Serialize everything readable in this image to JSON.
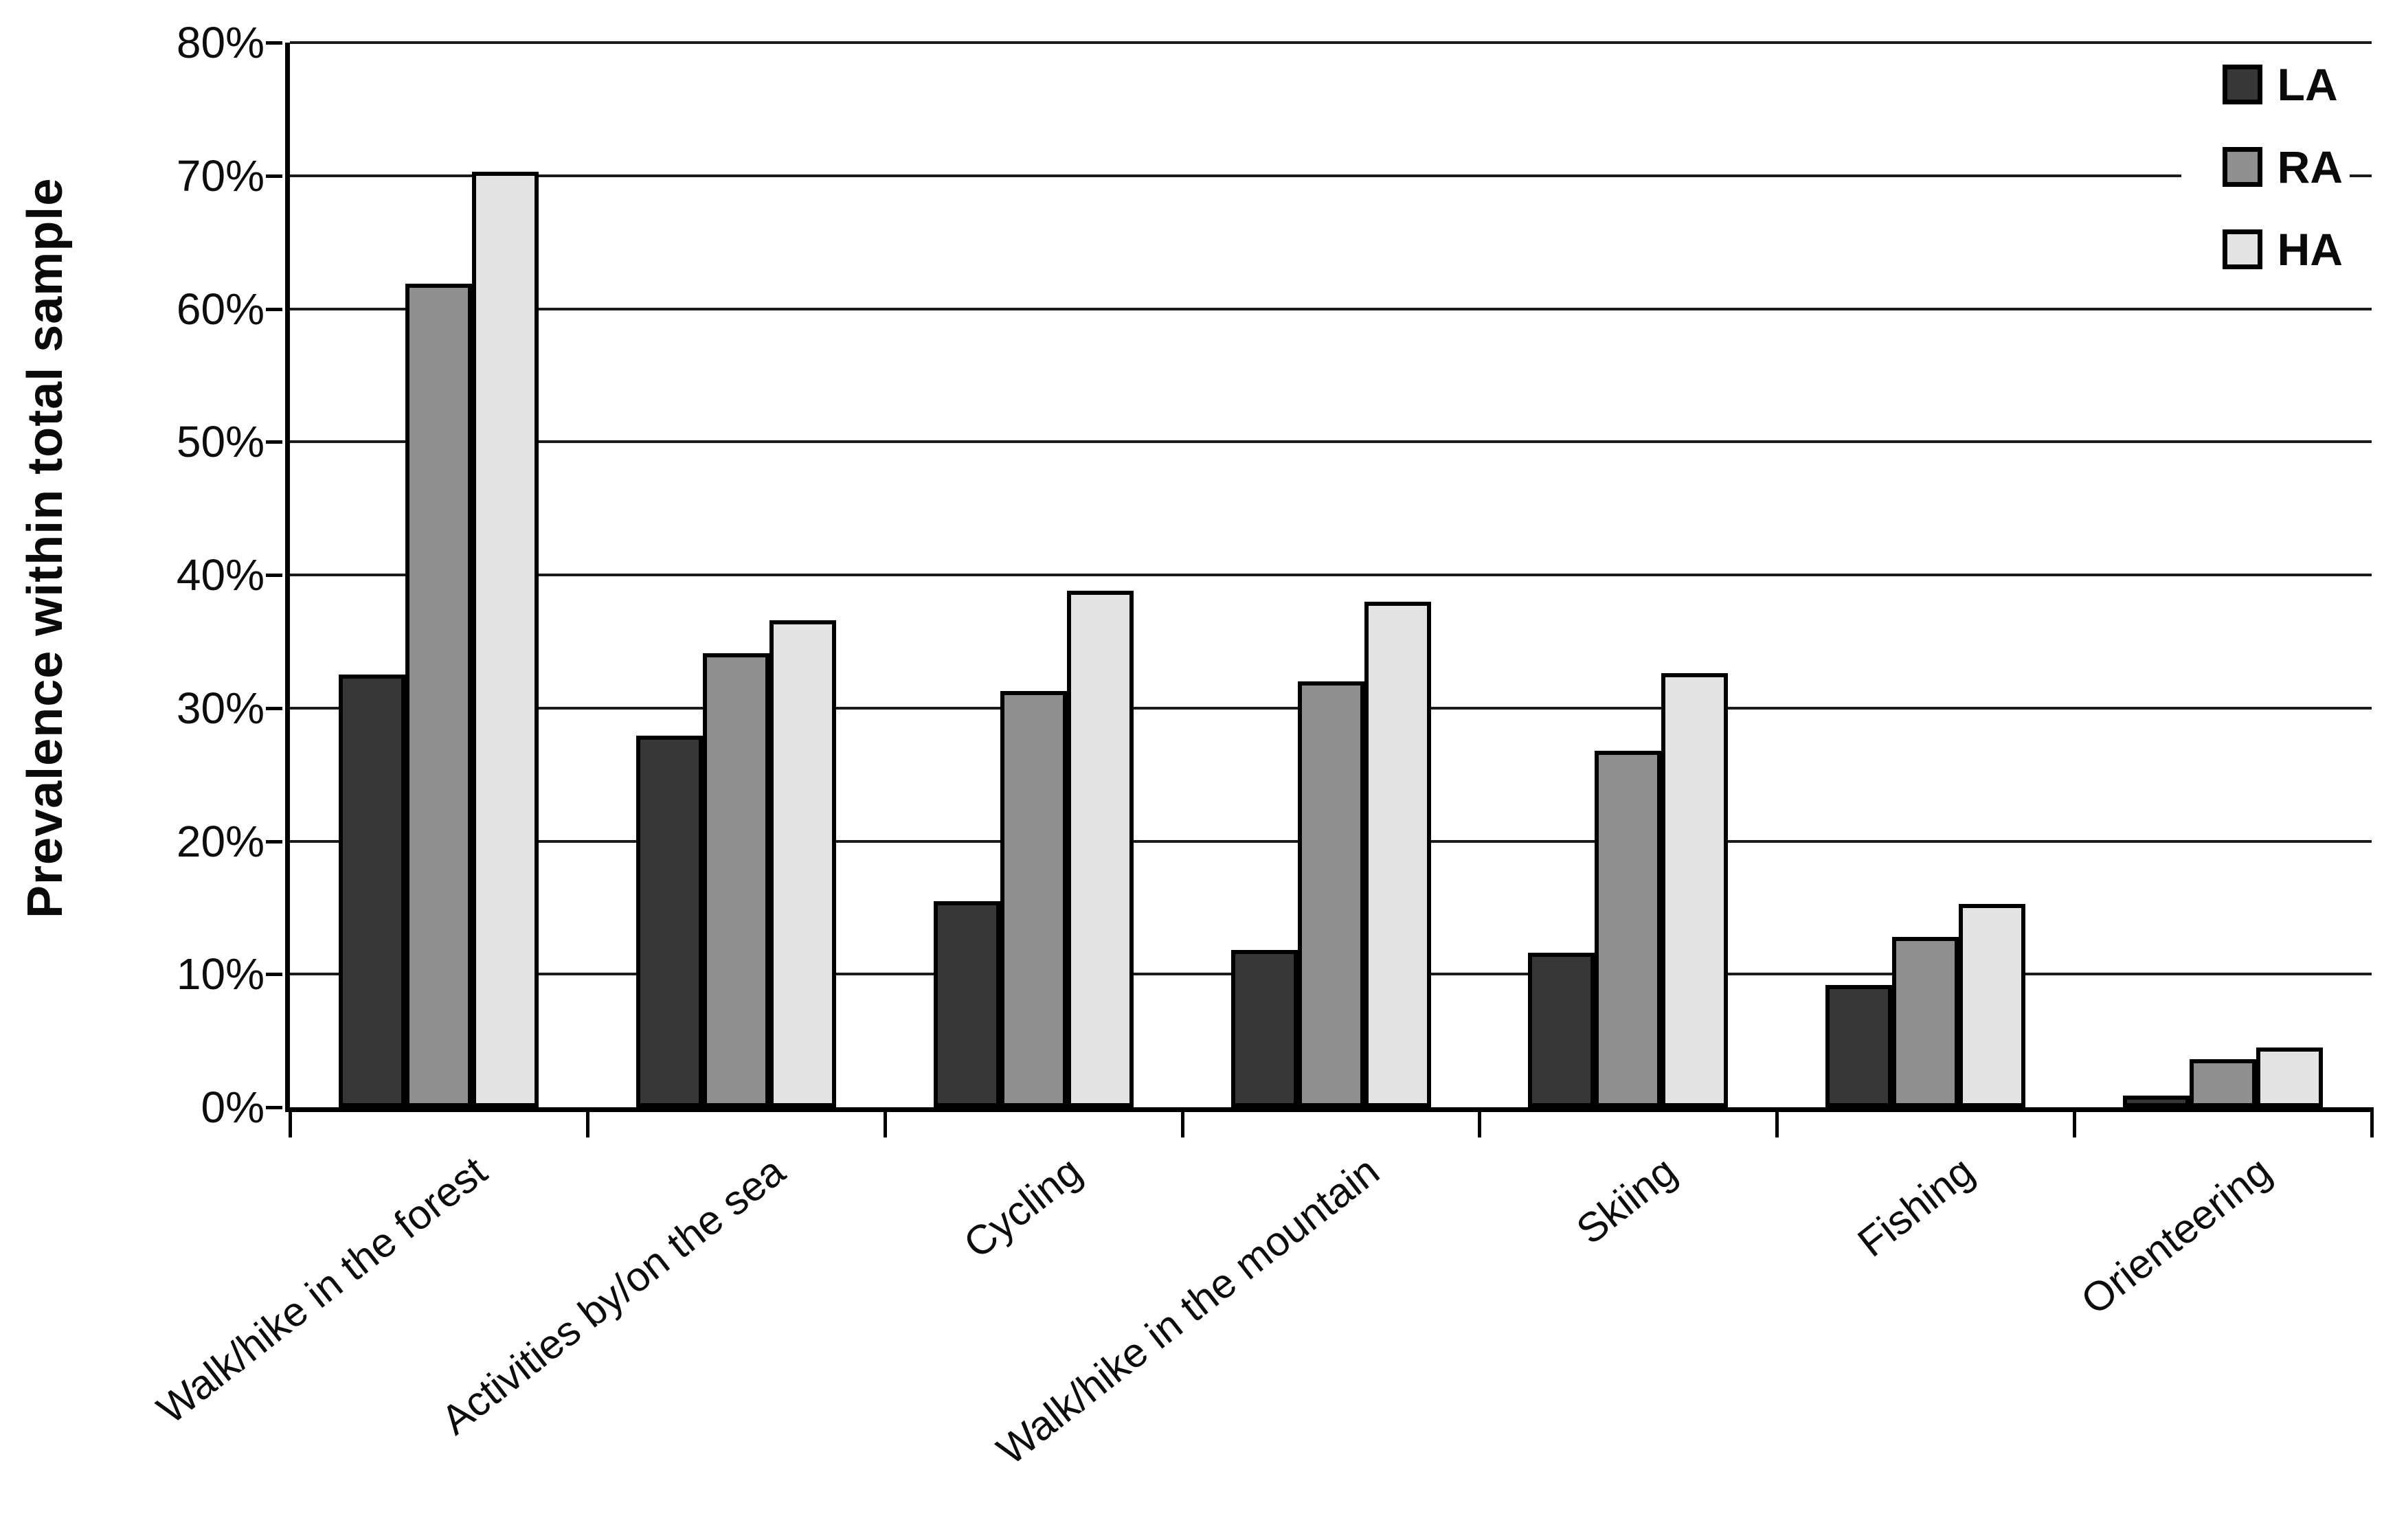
{
  "chart_data": {
    "type": "bar",
    "title": "",
    "xlabel": "",
    "ylabel": "Prevalence within total sample",
    "ylim": [
      0,
      80
    ],
    "ytick_step": 10,
    "ytick_labels": [
      "0%",
      "10%",
      "20%",
      "30%",
      "40%",
      "50%",
      "60%",
      "70%",
      "80%"
    ],
    "grid": true,
    "legend_position": "top-right",
    "categories": [
      "Walk/hike in the forest",
      "Activities by/on the sea",
      "Cycling",
      "Walk/hike in the mountain",
      "Skiing",
      "Fishing",
      "Orienteering"
    ],
    "series": [
      {
        "name": "LA",
        "color": "#373737",
        "values": [
          32.5,
          27.9,
          15.5,
          11.8,
          11.6,
          9.2,
          0.9
        ]
      },
      {
        "name": "RA",
        "color": "#8f8f8f",
        "values": [
          61.9,
          34.1,
          31.3,
          32.0,
          26.8,
          12.8,
          3.6
        ]
      },
      {
        "name": "HA",
        "color": "#e3e3e3",
        "values": [
          70.3,
          36.6,
          38.8,
          38.0,
          32.6,
          15.3,
          4.5
        ]
      }
    ]
  }
}
